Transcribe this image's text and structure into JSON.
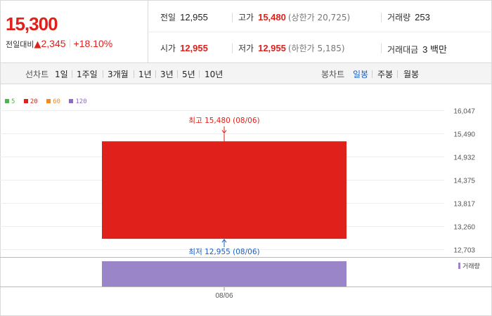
{
  "header": {
    "current_price": "15,300",
    "change_label": "전일대비",
    "change_arrow": "▲",
    "change_value": "2,345",
    "change_pct": "+18.10%",
    "prev_close": {
      "label": "전일",
      "value": "12,955"
    },
    "open": {
      "label": "시가",
      "value": "12,955"
    },
    "high": {
      "label": "고가",
      "value": "15,480",
      "limit": "(상한가 20,725)"
    },
    "low": {
      "label": "저가",
      "value": "12,955",
      "limit": "(하한가 5,185)"
    },
    "volume": {
      "label": "거래량",
      "value": "253"
    },
    "trade_value": {
      "label": "거래대금",
      "value": "3 백만"
    }
  },
  "periods": {
    "line_label": "선차트",
    "line_items": [
      "1일",
      "1주일",
      "3개월",
      "1년",
      "3년",
      "5년",
      "10년"
    ],
    "candle_label": "봉차트",
    "candle_items": [
      "일봉",
      "주봉",
      "월봉"
    ],
    "candle_active": "일봉"
  },
  "legend": [
    "5",
    "20",
    "60",
    "120"
  ],
  "colors": {
    "up": "#e0201b",
    "ma5": "#4cb648",
    "ma20": "#e0201b",
    "ma60": "#f28a1c",
    "ma120": "#8f6ac2",
    "volume": "#9985c8",
    "low_label": "#1a5fc6"
  },
  "chart_data": {
    "type": "candlestick",
    "x": [
      "08/06"
    ],
    "open": [
      12955
    ],
    "high": [
      15480
    ],
    "low": [
      12955
    ],
    "close": [
      15300
    ],
    "volume": [
      253
    ],
    "y_ticks": [
      "16,047",
      "15,490",
      "14,932",
      "14,375",
      "13,817",
      "13,260",
      "12,703"
    ],
    "ylim": [
      12703,
      16047
    ],
    "high_annotation": "최고 15,480 (08/06)",
    "low_annotation": "최저 12,955 (08/06)",
    "volume_legend": "거래량"
  }
}
